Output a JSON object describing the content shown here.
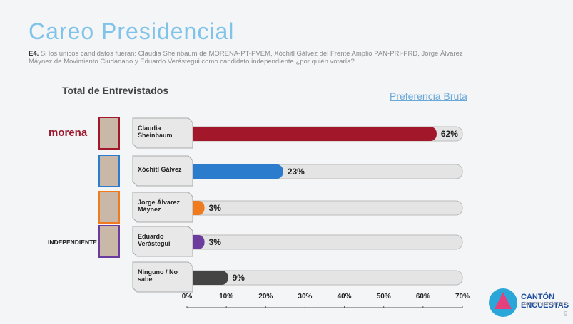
{
  "title": "Careo Presidencial",
  "question_label": "E4.",
  "question": "Si los únicos candidatos fueran: Claudia Sheinbaum de MORENA-PT-PVEM, Xóchitl Gálvez del Frente Amplio PAN-PRI-PRD, Jorge Álvarez Máynez de Movimiento Ciudadano y Eduardo Verástegui como candidato independiente ¿por quién votaría?",
  "left_heading": "Total de Entrevistados",
  "right_heading": "Preferencia Bruta",
  "party_labels": [
    "morena",
    "INDEPENDIENTE"
  ],
  "brand": {
    "name": "CANTÓN",
    "product": "ENCUESTAS",
    "tagline": "DATOS Y ANÁLISIS"
  },
  "page_number": "9",
  "chart_data": {
    "type": "hbar",
    "categories": [
      "Claudia Sheinbaum",
      "Xóchitl Gálvez",
      "Jorge Álvarez Máynez",
      "Eduardo Verástegui",
      "Ninguno / No sabe"
    ],
    "values": [
      62,
      23,
      3,
      3,
      9
    ],
    "value_labels": [
      "62%",
      "23%",
      "3%",
      "3%",
      "9%"
    ],
    "colors": [
      "#a3172b",
      "#2b7ccc",
      "#f07a1e",
      "#6b3c9e",
      "#444444"
    ],
    "xlim": [
      0,
      70
    ],
    "xticks": [
      {
        "value": 0,
        "label": "0%"
      },
      {
        "value": 10,
        "label": "10%"
      },
      {
        "value": 20,
        "label": "20%"
      },
      {
        "value": 30,
        "label": "30%"
      },
      {
        "value": 40,
        "label": "40%"
      },
      {
        "value": 50,
        "label": "50%"
      },
      {
        "value": 60,
        "label": "60%"
      },
      {
        "value": 70,
        "label": "70%"
      }
    ]
  }
}
